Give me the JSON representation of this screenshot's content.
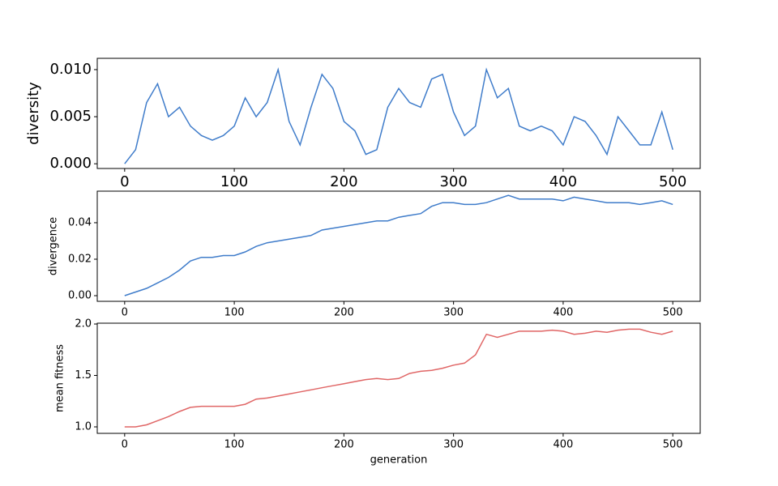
{
  "chart_data": [
    {
      "type": "line",
      "ylabel": "diversity",
      "color": "#3f7cca",
      "x": [
        0,
        10,
        20,
        30,
        40,
        50,
        60,
        70,
        80,
        90,
        100,
        110,
        120,
        130,
        140,
        150,
        160,
        170,
        180,
        190,
        200,
        210,
        220,
        230,
        240,
        250,
        260,
        270,
        280,
        290,
        300,
        310,
        320,
        330,
        340,
        350,
        360,
        370,
        380,
        390,
        400,
        410,
        420,
        430,
        440,
        450,
        460,
        470,
        480,
        490,
        500
      ],
      "values": [
        0.0,
        0.0015,
        0.0065,
        0.0085,
        0.005,
        0.006,
        0.004,
        0.003,
        0.0025,
        0.003,
        0.004,
        0.007,
        0.005,
        0.0065,
        0.01,
        0.0045,
        0.002,
        0.006,
        0.0095,
        0.008,
        0.0045,
        0.0035,
        0.001,
        0.0015,
        0.006,
        0.008,
        0.0065,
        0.006,
        0.009,
        0.0095,
        0.0055,
        0.003,
        0.004,
        0.01,
        0.007,
        0.008,
        0.004,
        0.0035,
        0.004,
        0.0035,
        0.002,
        0.005,
        0.0045,
        0.003,
        0.001,
        0.005,
        0.0035,
        0.002,
        0.002,
        0.0055,
        0.0015
      ],
      "xlim": [
        -25,
        525
      ],
      "xticks": [
        0,
        100,
        200,
        300,
        400,
        500
      ],
      "ylim": [
        -0.0005,
        0.0112
      ],
      "yticks": [
        {
          "value": 0,
          "label": "0.000"
        },
        {
          "value": 0.005,
          "label": "0.005"
        },
        {
          "value": 0.01,
          "label": "0.010"
        }
      ]
    },
    {
      "type": "line",
      "ylabel": "divergence",
      "color": "#3f7cca",
      "x": [
        0,
        10,
        20,
        30,
        40,
        50,
        60,
        70,
        80,
        90,
        100,
        110,
        120,
        130,
        140,
        150,
        160,
        170,
        180,
        190,
        200,
        210,
        220,
        230,
        240,
        250,
        260,
        270,
        280,
        290,
        300,
        310,
        320,
        330,
        340,
        350,
        360,
        370,
        380,
        390,
        400,
        410,
        420,
        430,
        440,
        450,
        460,
        470,
        480,
        490,
        500
      ],
      "values": [
        0,
        0.002,
        0.004,
        0.007,
        0.01,
        0.014,
        0.019,
        0.021,
        0.021,
        0.022,
        0.022,
        0.024,
        0.027,
        0.029,
        0.03,
        0.031,
        0.032,
        0.033,
        0.036,
        0.037,
        0.038,
        0.039,
        0.04,
        0.041,
        0.041,
        0.043,
        0.044,
        0.045,
        0.049,
        0.051,
        0.051,
        0.05,
        0.05,
        0.051,
        0.053,
        0.055,
        0.053,
        0.053,
        0.053,
        0.053,
        0.052,
        0.054,
        0.053,
        0.052,
        0.051,
        0.051,
        0.051,
        0.05,
        0.051,
        0.052,
        0.05
      ],
      "xlim": [
        -25,
        525
      ],
      "xticks": [
        0,
        100,
        200,
        300,
        400,
        500
      ],
      "ylim": [
        -0.0031,
        0.0573
      ],
      "yticks": [
        {
          "value": 0,
          "label": "0.00"
        },
        {
          "value": 0.02,
          "label": "0.02"
        },
        {
          "value": 0.04,
          "label": "0.04"
        }
      ]
    },
    {
      "type": "line",
      "ylabel": "mean fitness",
      "xlabel": "generation",
      "color": "#e06666",
      "x": [
        0,
        10,
        20,
        30,
        40,
        50,
        60,
        70,
        80,
        90,
        100,
        110,
        120,
        130,
        140,
        150,
        160,
        170,
        180,
        190,
        200,
        210,
        220,
        230,
        240,
        250,
        260,
        270,
        280,
        290,
        300,
        310,
        320,
        330,
        340,
        350,
        360,
        370,
        380,
        390,
        400,
        410,
        420,
        430,
        440,
        450,
        460,
        470,
        480,
        490,
        500
      ],
      "values": [
        1.0,
        1.0,
        1.02,
        1.06,
        1.1,
        1.15,
        1.19,
        1.2,
        1.2,
        1.2,
        1.2,
        1.22,
        1.27,
        1.28,
        1.3,
        1.32,
        1.34,
        1.36,
        1.38,
        1.4,
        1.42,
        1.44,
        1.46,
        1.47,
        1.46,
        1.47,
        1.52,
        1.54,
        1.55,
        1.57,
        1.6,
        1.62,
        1.7,
        1.9,
        1.87,
        1.9,
        1.93,
        1.93,
        1.93,
        1.94,
        1.93,
        1.9,
        1.91,
        1.93,
        1.92,
        1.94,
        1.95,
        1.95,
        1.92,
        1.9,
        1.93
      ],
      "xlim": [
        -25,
        525
      ],
      "xticks": [
        0,
        100,
        200,
        300,
        400,
        500
      ],
      "ylim": [
        0.937,
        2.008
      ],
      "yticks": [
        {
          "value": 1.0,
          "label": "1.0"
        },
        {
          "value": 1.5,
          "label": "1.5"
        },
        {
          "value": 2.0,
          "label": "2.0"
        }
      ]
    }
  ]
}
